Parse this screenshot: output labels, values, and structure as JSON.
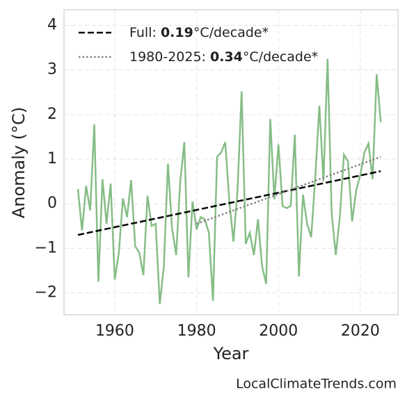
{
  "chart_data": {
    "type": "line",
    "xlabel": "Year",
    "ylabel": "Anomaly (°C)",
    "watermark": "LocalClimateTrends.com",
    "xlim": [
      1947.6,
      2029.2
    ],
    "ylim": [
      -2.49,
      4.35
    ],
    "xticks": [
      1960,
      1980,
      2000,
      2020
    ],
    "yticks": [
      {
        "value": -2,
        "label": "−2"
      },
      {
        "value": -1,
        "label": "−1"
      },
      0,
      1,
      2,
      3,
      4
    ],
    "grid": true,
    "legend": "upper left",
    "series": [
      {
        "name": "Full: 0.19°C/decade*",
        "color": "#000000",
        "dash": "dashed",
        "x": [
          1951,
          2025
        ],
        "values": [
          -0.7,
          0.73
        ]
      },
      {
        "name": "1980-2025: 0.34°C/decade*",
        "color": "#808080",
        "dash": "dotted",
        "x": [
          1980,
          2025
        ],
        "values": [
          -0.45,
          1.05
        ]
      },
      {
        "color": "#86bd86",
        "dash": "solid",
        "x": [
          1951,
          1952,
          1953,
          1954,
          1955,
          1956,
          1957,
          1958,
          1959,
          1960,
          1961,
          1962,
          1963,
          1964,
          1965,
          1966,
          1967,
          1968,
          1969,
          1970,
          1971,
          1972,
          1973,
          1974,
          1975,
          1976,
          1977,
          1978,
          1979,
          1980,
          1981,
          1982,
          1983,
          1984,
          1985,
          1986,
          1987,
          1988,
          1989,
          1990,
          1991,
          1992,
          1993,
          1994,
          1995,
          1996,
          1997,
          1998,
          1999,
          2000,
          2001,
          2002,
          2003,
          2004,
          2005,
          2006,
          2007,
          2008,
          2009,
          2010,
          2011,
          2012,
          2013,
          2014,
          2015,
          2016,
          2017,
          2018,
          2019,
          2020,
          2021,
          2022,
          2023,
          2024,
          2025
        ],
        "values": [
          0.33,
          -0.6,
          0.4,
          -0.15,
          1.78,
          -1.75,
          0.55,
          -0.45,
          0.45,
          -1.7,
          -1.1,
          0.12,
          -0.3,
          0.53,
          -0.95,
          -1.1,
          -1.6,
          0.18,
          -0.5,
          -0.45,
          -2.25,
          -1.4,
          0.9,
          -0.55,
          -1.15,
          0.5,
          1.38,
          -1.65,
          0.05,
          -0.58,
          -0.3,
          -0.35,
          -0.65,
          -2.18,
          1.05,
          1.15,
          1.38,
          0.05,
          -0.85,
          0.3,
          2.52,
          -0.9,
          -0.65,
          -1.15,
          -0.35,
          -1.4,
          -1.8,
          1.9,
          0.1,
          1.33,
          -0.05,
          -0.1,
          -0.05,
          1.55,
          -1.63,
          0.2,
          -0.45,
          -0.75,
          0.6,
          2.2,
          0.5,
          3.25,
          -0.2,
          -1.15,
          -0.3,
          1.1,
          0.95,
          -0.4,
          0.3,
          0.65,
          1.15,
          1.35,
          0.55,
          2.9,
          1.83
        ]
      }
    ]
  }
}
